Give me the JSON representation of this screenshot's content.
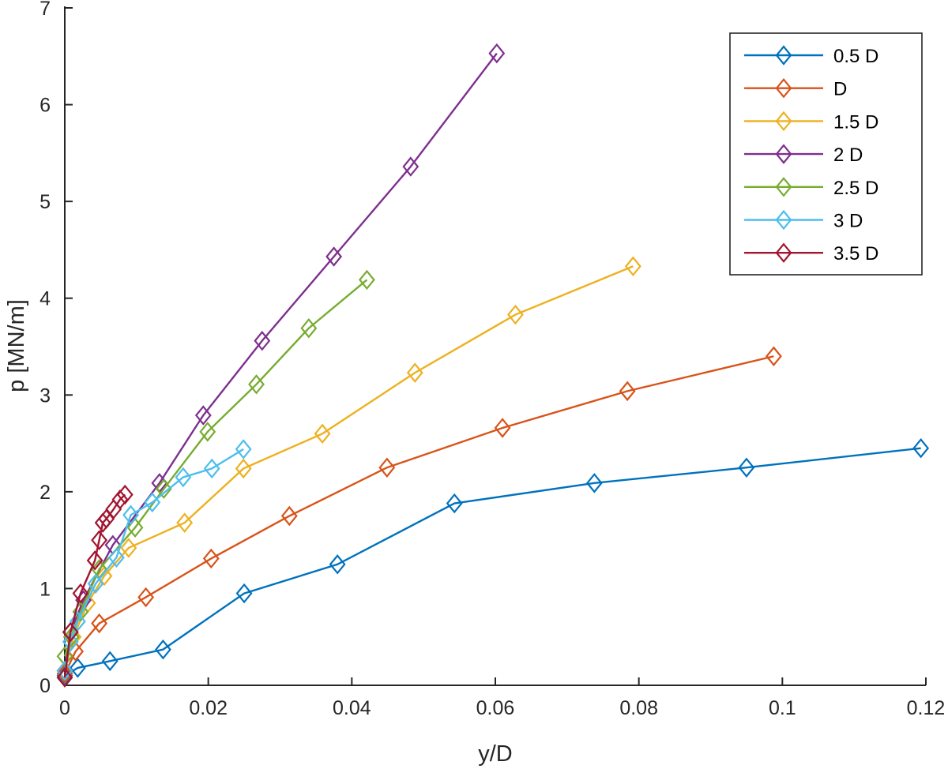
{
  "chart_data": {
    "type": "line",
    "title": "",
    "xlabel": "y/D",
    "ylabel": "p [MN/m]",
    "xlim": [
      0,
      0.12
    ],
    "ylim": [
      0,
      7
    ],
    "xticks": [
      0,
      0.02,
      0.04,
      0.06,
      0.08,
      0.1,
      0.12
    ],
    "xtick_labels": [
      "0",
      "0.02",
      "0.04",
      "0.06",
      "0.08",
      "0.1",
      "0.12"
    ],
    "yticks": [
      0,
      1,
      2,
      3,
      4,
      5,
      6,
      7
    ],
    "ytick_labels": [
      "0",
      "1",
      "2",
      "3",
      "4",
      "5",
      "6",
      "7"
    ],
    "grid": false,
    "legend_position": "top-right",
    "marker": "diamond",
    "series": [
      {
        "name": "0.5 D",
        "color": "#0072BD",
        "x": [
          0,
          0.0018,
          0.0063,
          0.0137,
          0.025,
          0.038,
          0.0543,
          0.0738,
          0.095,
          0.1193
        ],
        "y": [
          0.1,
          0.18,
          0.25,
          0.37,
          0.95,
          1.25,
          1.88,
          2.09,
          2.25,
          2.45
        ]
      },
      {
        "name": "D",
        "color": "#D95319",
        "x": [
          0,
          0.0015,
          0.0048,
          0.0113,
          0.0204,
          0.0313,
          0.0449,
          0.061,
          0.0784,
          0.0988
        ],
        "y": [
          0.12,
          0.35,
          0.64,
          0.91,
          1.31,
          1.75,
          2.25,
          2.66,
          3.04,
          3.4
        ]
      },
      {
        "name": "1.5 D",
        "color": "#EDB120",
        "x": [
          0,
          0.0012,
          0.0032,
          0.0055,
          0.0089,
          0.0167,
          0.0249,
          0.0359,
          0.0488,
          0.0628,
          0.0792
        ],
        "y": [
          0.15,
          0.5,
          0.85,
          1.13,
          1.42,
          1.68,
          2.24,
          2.6,
          3.23,
          3.83,
          4.33
        ]
      },
      {
        "name": "2 D",
        "color": "#7E2F8E",
        "x": [
          0,
          0.0008,
          0.0026,
          0.0067,
          0.0132,
          0.0193,
          0.0275,
          0.0375,
          0.0482,
          0.0602
        ],
        "y": [
          0.15,
          0.55,
          0.88,
          1.45,
          2.09,
          2.79,
          3.56,
          4.43,
          5.36,
          6.53
        ]
      },
      {
        "name": "2.5 D",
        "color": "#77AC30",
        "x": [
          0,
          0.0009,
          0.0022,
          0.0048,
          0.0098,
          0.0138,
          0.0199,
          0.0267,
          0.034,
          0.0421
        ],
        "y": [
          0.3,
          0.5,
          0.76,
          1.2,
          1.63,
          2.03,
          2.62,
          3.11,
          3.69,
          4.19
        ]
      },
      {
        "name": "3 D",
        "color": "#4DBEEE",
        "x": [
          0,
          0.0008,
          0.0018,
          0.0043,
          0.0072,
          0.0092,
          0.0122,
          0.0165,
          0.0205,
          0.0249
        ],
        "y": [
          0.15,
          0.45,
          0.66,
          1.05,
          1.32,
          1.76,
          1.89,
          2.15,
          2.24,
          2.44
        ]
      },
      {
        "name": "3.5 D",
        "color": "#A2142F",
        "x": [
          0,
          0.0008,
          0.0022,
          0.0042,
          0.0048,
          0.0053,
          0.0058,
          0.0068,
          0.0077,
          0.0084
        ],
        "y": [
          0.08,
          0.55,
          0.95,
          1.29,
          1.5,
          1.68,
          1.72,
          1.82,
          1.92,
          1.97
        ]
      }
    ]
  }
}
